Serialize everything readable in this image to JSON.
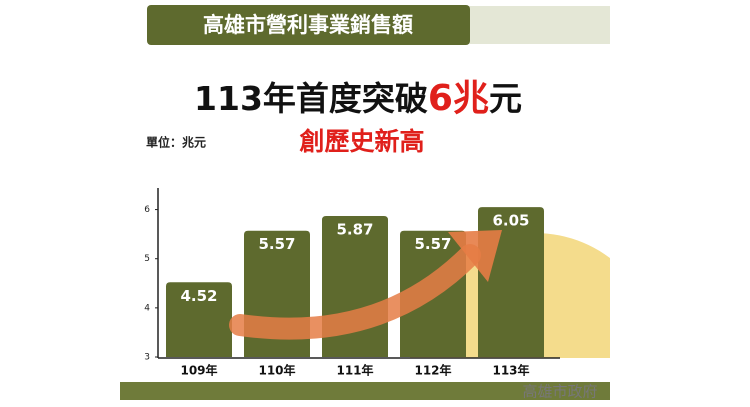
{
  "chart_data": {
    "type": "bar",
    "title": "高雄市營利事業銷售額",
    "headline": "113年首度突破",
    "headline_highlight": "6兆",
    "headline_end": "元",
    "subtitle": "創歷史新高",
    "unit_label": "單位：兆元",
    "footer": "高雄市政府",
    "categories": [
      "109年",
      "110年",
      "111年",
      "112年",
      "113年"
    ],
    "values": [
      4.52,
      5.57,
      5.87,
      5.57,
      6.05
    ],
    "color": "#5e6a2e",
    "ylim": [
      3,
      6.5
    ],
    "yticks": [
      3,
      4,
      5,
      6
    ]
  }
}
